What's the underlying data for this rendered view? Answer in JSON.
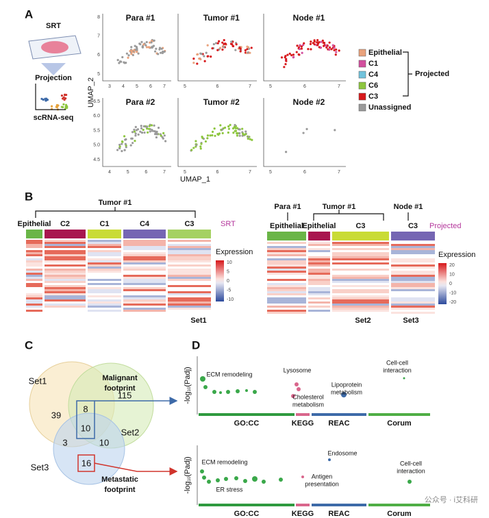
{
  "panel_a": {
    "label": "A",
    "schematic": {
      "title": "SRT",
      "method": "Projection",
      "source": "scRNA-seq"
    },
    "y_label": "UMAP_2",
    "x_label": "UMAP_1",
    "plots": [
      {
        "title": "Para #1",
        "xticks": [
          "3",
          "4",
          "5",
          "6",
          "7"
        ],
        "yticks": [
          "8",
          "7",
          "6",
          "5"
        ]
      },
      {
        "title": "Tumor #1",
        "xticks": [
          "5",
          "6",
          "7"
        ]
      },
      {
        "title": "Node #1",
        "xticks": [
          "5",
          "6",
          "7"
        ]
      },
      {
        "title": "Para #2",
        "xticks": [
          "4",
          "5",
          "6",
          "7"
        ],
        "yticks": [
          "6.5",
          "6.0",
          "5.5",
          "5.0",
          "4.5"
        ]
      },
      {
        "title": "Tumor #2",
        "xticks": [
          "5",
          "6",
          "7"
        ]
      },
      {
        "title": "Node #2",
        "xticks": [
          "5",
          "6",
          "7"
        ]
      }
    ],
    "legend": [
      {
        "name": "Epithelial",
        "color": "#e9a27c"
      },
      {
        "name": "C1",
        "color": "#d34f9e"
      },
      {
        "name": "C4",
        "color": "#71c3dc"
      },
      {
        "name": "C6",
        "color": "#8dc63f"
      },
      {
        "name": "C3",
        "color": "#d7191c"
      },
      {
        "name": "Unassigned",
        "color": "#9a9a9a"
      }
    ],
    "bracket_label": "Projected"
  },
  "panel_b": {
    "label": "B",
    "left": {
      "group": "Tumor #1",
      "clusters": [
        {
          "name": "Epithelial",
          "color": "#6ab547"
        },
        {
          "name": "C2",
          "color": "#a8164f"
        },
        {
          "name": "C1",
          "color": "#c9db36"
        },
        {
          "name": "C4",
          "color": "#7566b3"
        },
        {
          "name": "C3",
          "color": "#a5d162"
        }
      ],
      "tag": "SRT",
      "legend_title": "Expression",
      "legend_ticks": [
        "10",
        "5",
        "0",
        "-5",
        "-10"
      ],
      "set": "Set1"
    },
    "right": {
      "groups": [
        "Para #1",
        "Tumor #1",
        "Node #1"
      ],
      "clusters": [
        {
          "name": "Epithelial",
          "color": "#6ab547"
        },
        {
          "name": "Epithelial",
          "color": "#a8164f"
        },
        {
          "name": "C3",
          "color": "#c9db36"
        },
        {
          "name": "C3",
          "color": "#7566b3"
        }
      ],
      "tag": "Projected",
      "legend_title": "Expression",
      "legend_ticks": [
        "20",
        "10",
        "0",
        "-10",
        "-20"
      ],
      "sets": [
        "Set2",
        "Set3"
      ]
    }
  },
  "panel_c": {
    "label": "C",
    "sets": [
      "Set1",
      "Set2",
      "Set3"
    ],
    "counts": {
      "set1_only": 39,
      "set1_set2": 8,
      "set2_only": 115,
      "all_three": 10,
      "set1_set3": 3,
      "set2_set3": 10,
      "set3_only": 16
    },
    "malignant": [
      "Malignant",
      "footprint"
    ],
    "metastatic": [
      "Metastatic",
      "footprint"
    ]
  },
  "panel_d": {
    "label": "D",
    "y_label": [
      "-log",
      "10",
      "(Padj)"
    ],
    "categories": [
      "GO:CC",
      "KEGG",
      "REAC",
      "Corum"
    ],
    "top": [
      [
        "ECM remodeling"
      ],
      [
        "Lysosome"
      ],
      [
        "Cholesterol",
        "metabolism"
      ],
      [
        "Lipoprotein",
        "metabolism"
      ],
      [
        "Cell-cell",
        "interaction"
      ]
    ],
    "bottom": [
      [
        "ECM remodeling"
      ],
      [
        "ER stress"
      ],
      [
        "Endosome"
      ],
      [
        "Antigen",
        "presentation"
      ],
      [
        "Cell-cell",
        "interaction"
      ]
    ]
  },
  "watermark": "公众号 · i艾科研"
}
